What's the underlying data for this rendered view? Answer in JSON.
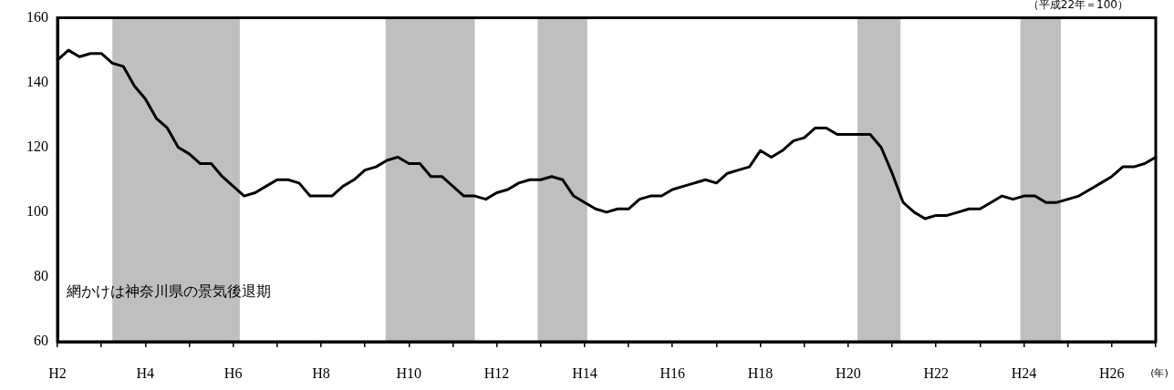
{
  "chart_data": {
    "type": "line",
    "title": "（平成22年＝100）",
    "xlabel": "(年)",
    "annotations": [
      "網かけは神奈川県の景気後退期"
    ],
    "color": "#000000",
    "marker": "none",
    "line_style": "solid",
    "categories": [
      "H2",
      null,
      null,
      null,
      null,
      null,
      null,
      null,
      "H4",
      null,
      null,
      null,
      null,
      null,
      null,
      null,
      "H6",
      null,
      null,
      null,
      null,
      null,
      null,
      null,
      "H8",
      null,
      null,
      null,
      null,
      null,
      null,
      null,
      "H10",
      null,
      null,
      null,
      null,
      null,
      null,
      null,
      "H12",
      null,
      null,
      null,
      null,
      null,
      null,
      null,
      "H14",
      null,
      null,
      null,
      null,
      null,
      null,
      null,
      "H16",
      null,
      null,
      null,
      null,
      null,
      null,
      null,
      "H18",
      null,
      null,
      null,
      null,
      null,
      null,
      null,
      "H20",
      null,
      null,
      null,
      null,
      null,
      null,
      null,
      "H22",
      null,
      null,
      null,
      null,
      null,
      null,
      null,
      "H24",
      null,
      null,
      null,
      null,
      null,
      null,
      null,
      "H26",
      null,
      null,
      null,
      null
    ],
    "ylim": [
      60,
      160
    ],
    "yticks": [
      60,
      80,
      100,
      120,
      140,
      160
    ],
    "values": [
      147,
      150,
      148,
      149,
      149,
      146,
      145,
      139,
      135,
      129,
      126,
      120,
      118,
      115,
      115,
      111,
      108,
      105,
      106,
      108,
      110,
      110,
      109,
      105,
      105,
      105,
      108,
      110,
      113,
      114,
      116,
      117,
      115,
      115,
      111,
      111,
      108,
      105,
      105,
      104,
      106,
      107,
      109,
      110,
      110,
      111,
      110,
      105,
      103,
      101,
      100,
      101,
      101,
      104,
      105,
      105,
      107,
      108,
      109,
      110,
      109,
      112,
      113,
      114,
      119,
      117,
      119,
      122,
      123,
      126,
      126,
      124,
      124,
      124,
      124,
      120,
      112,
      103,
      100,
      98,
      99,
      99,
      100,
      101,
      101,
      103,
      105,
      104,
      105,
      105,
      103,
      103,
      104,
      105,
      107,
      109,
      111,
      114,
      114,
      115,
      117
    ]
  }
}
